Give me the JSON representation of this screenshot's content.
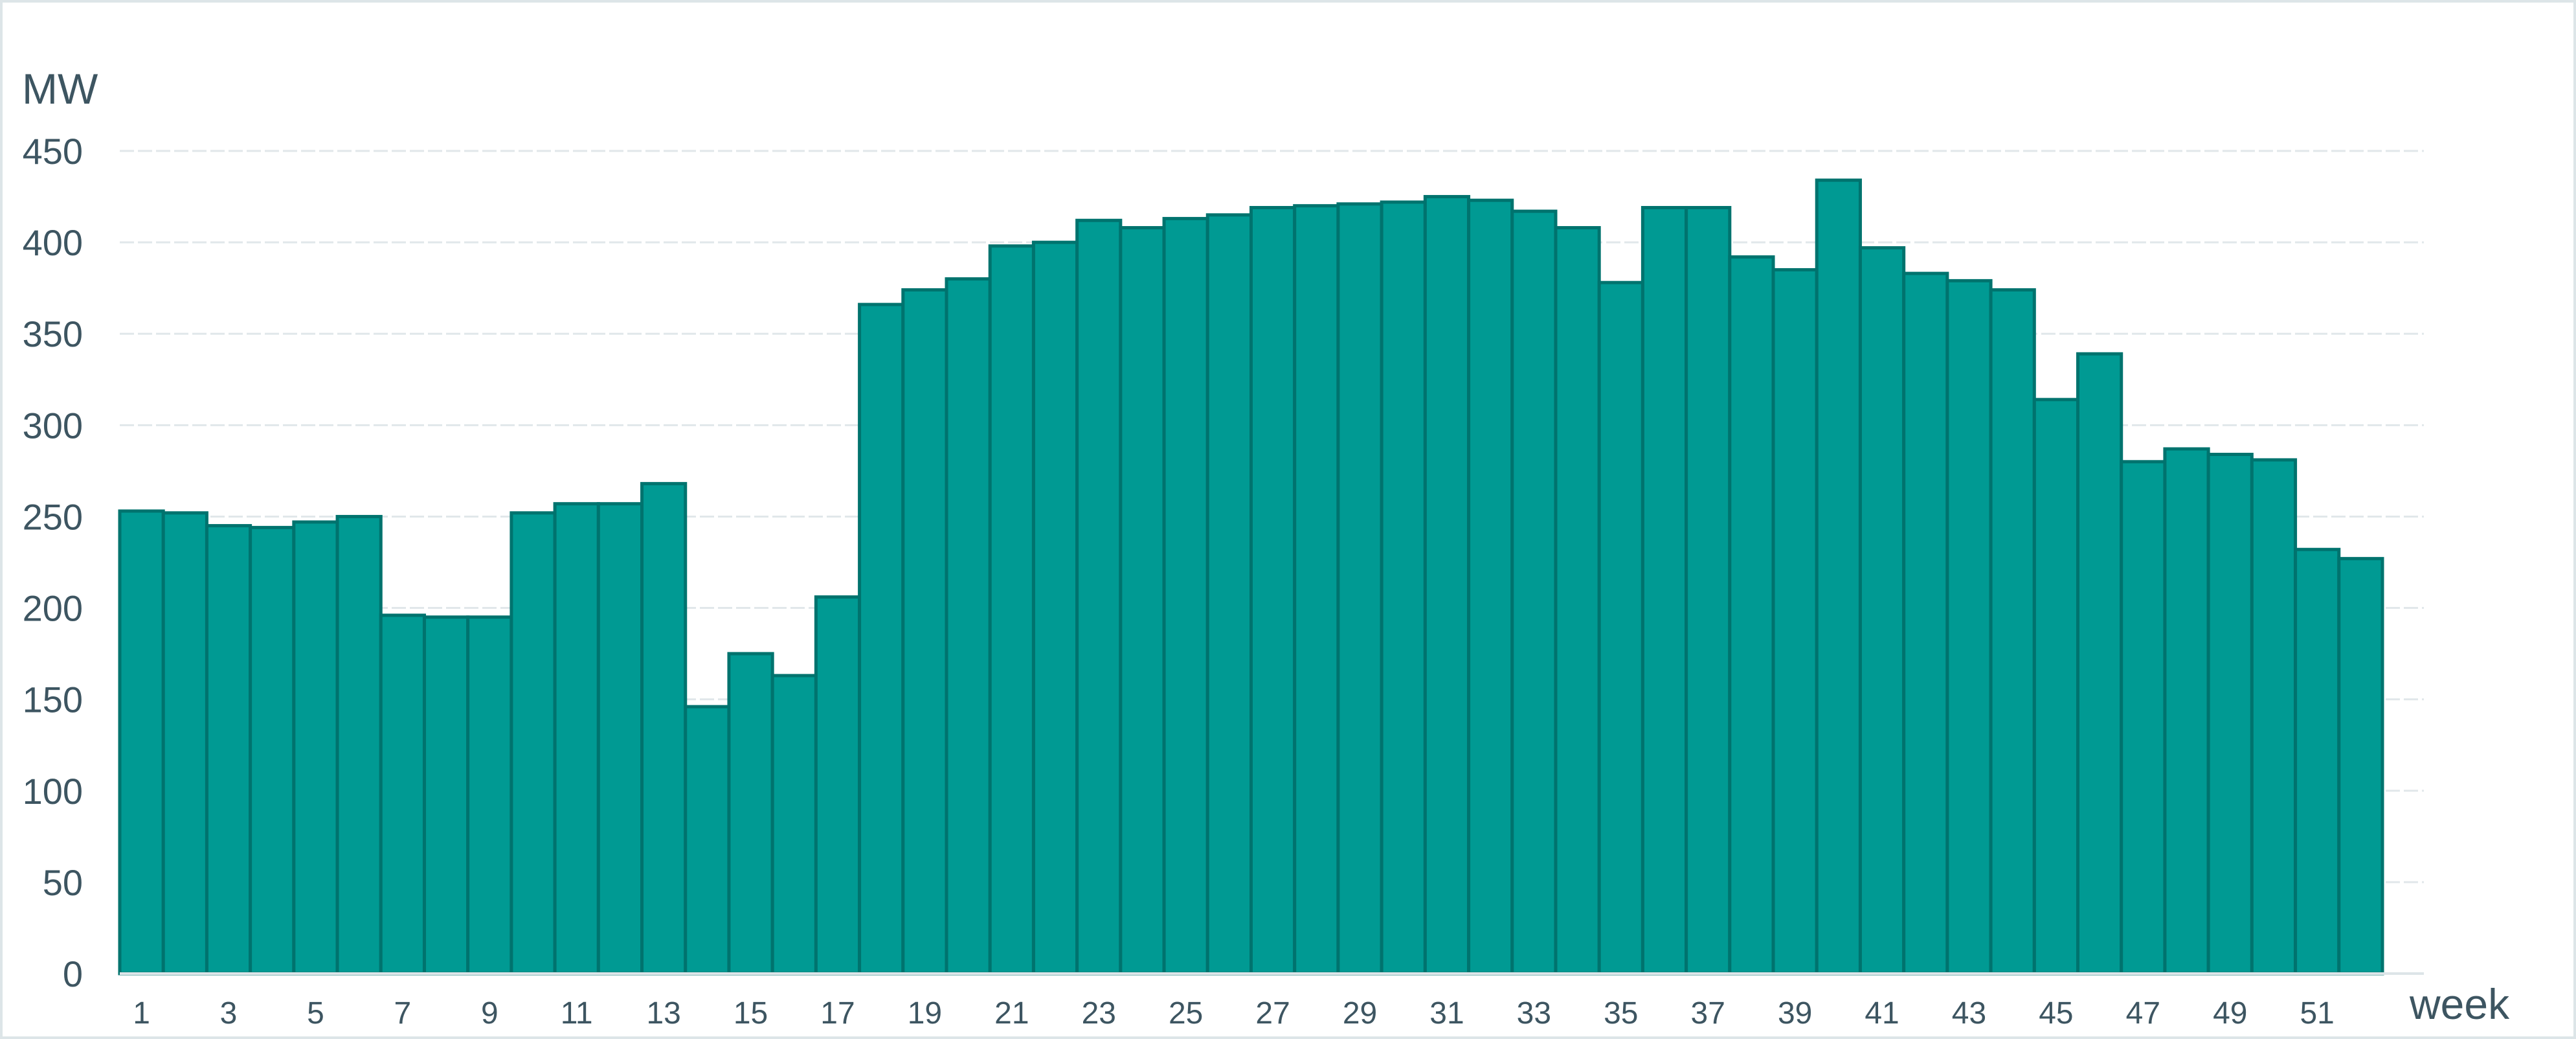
{
  "chart_data": {
    "type": "bar",
    "title": "",
    "ylabel": "MW",
    "xlabel": "week",
    "ylim": [
      0,
      450
    ],
    "yticks": [
      0,
      50,
      100,
      150,
      200,
      250,
      300,
      350,
      400,
      450
    ],
    "xtick_labels": [
      "1",
      "3",
      "5",
      "7",
      "9",
      "11",
      "13",
      "15",
      "17",
      "19",
      "21",
      "23",
      "25",
      "27",
      "29",
      "31",
      "33",
      "35",
      "37",
      "39",
      "41",
      "43",
      "45",
      "47",
      "49",
      "51"
    ],
    "grid": true,
    "legend": null,
    "categories": [
      1,
      2,
      3,
      4,
      5,
      6,
      7,
      8,
      9,
      10,
      11,
      12,
      13,
      14,
      15,
      16,
      17,
      18,
      19,
      20,
      21,
      22,
      23,
      24,
      25,
      26,
      27,
      28,
      29,
      30,
      31,
      32,
      33,
      34,
      35,
      36,
      37,
      38,
      39,
      40,
      41,
      42,
      43,
      44,
      45,
      46,
      47,
      48,
      49,
      50,
      51,
      52
    ],
    "values": [
      253,
      252,
      245,
      244,
      247,
      250,
      196,
      195,
      195,
      252,
      257,
      257,
      268,
      146,
      175,
      163,
      206,
      366,
      374,
      380,
      398,
      400,
      412,
      408,
      413,
      415,
      419,
      420,
      421,
      422,
      425,
      423,
      417,
      408,
      378,
      419,
      419,
      392,
      385,
      434,
      397,
      383,
      379,
      374,
      314,
      339,
      280,
      287,
      284,
      281,
      232,
      227
    ],
    "colors": {
      "bar_fill": "#009a93",
      "bar_border": "#00736e",
      "text": "#3d5561",
      "grid": "#e1e7ea",
      "frame": "#dde5e8"
    }
  }
}
